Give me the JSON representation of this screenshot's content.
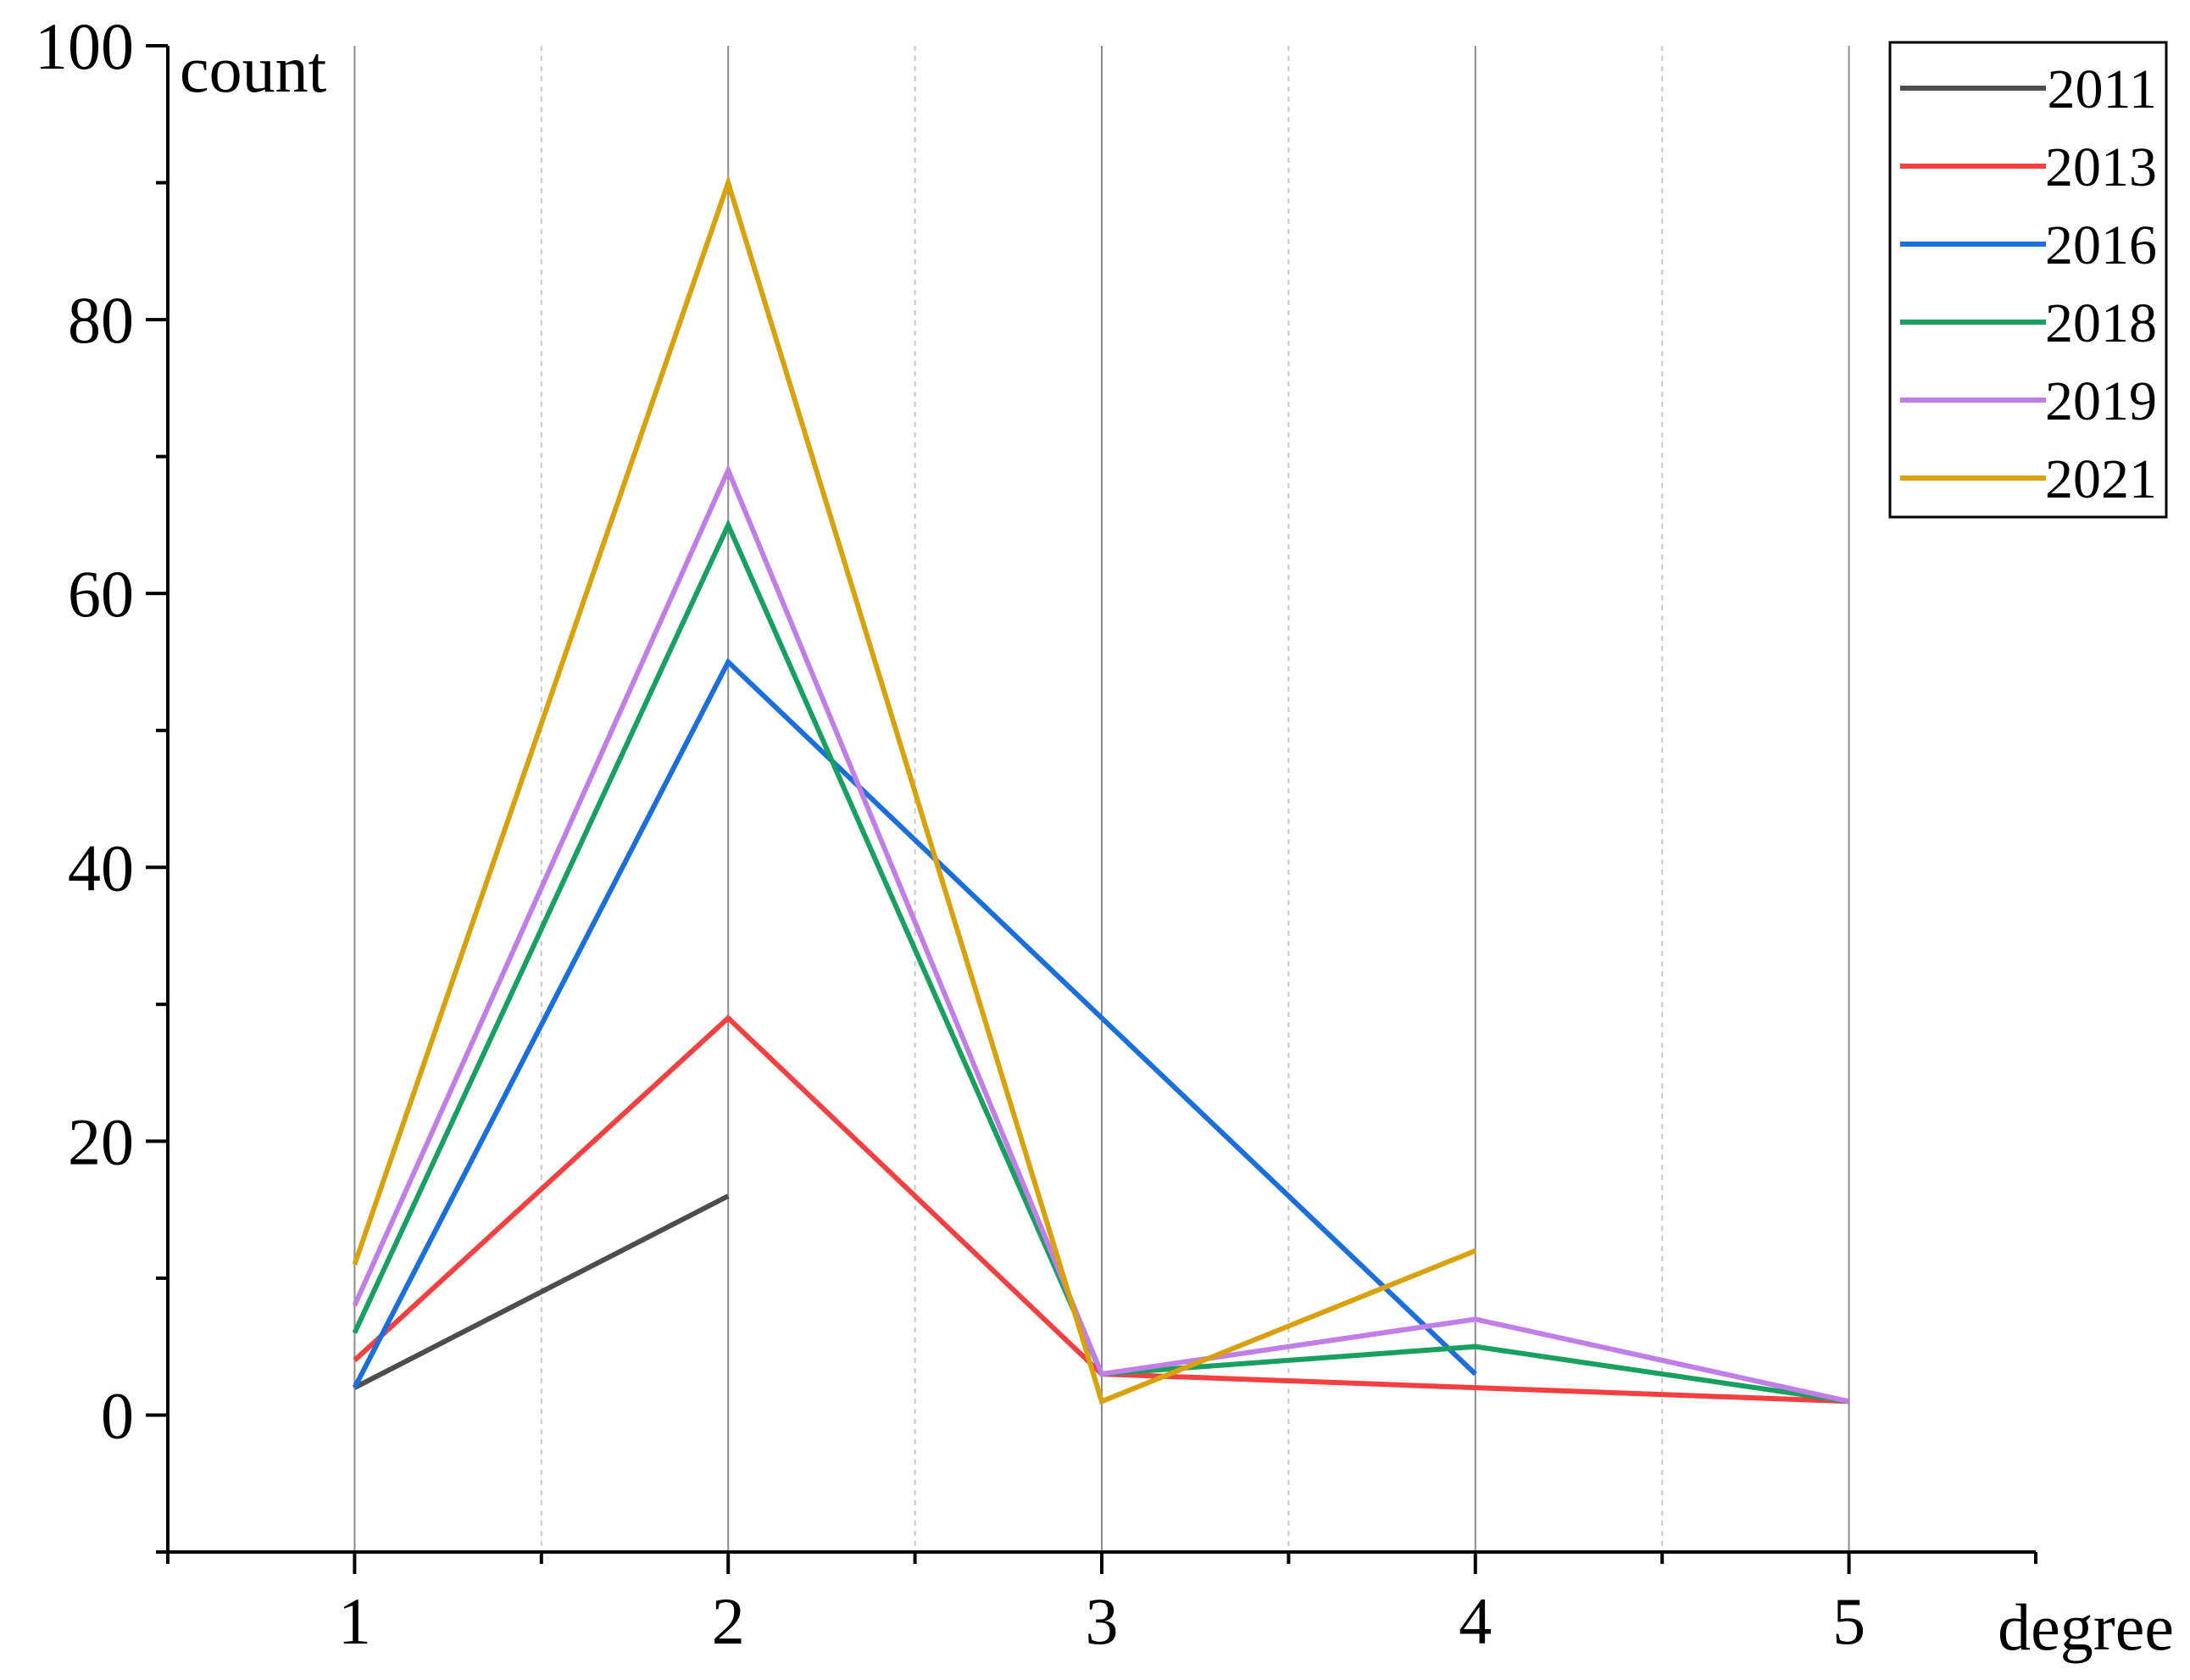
{
  "chart_data": {
    "type": "line",
    "title": "",
    "xlabel": "degree",
    "ylabel": "count",
    "x": [
      1,
      2,
      3,
      4,
      5
    ],
    "xlim": [
      0.5,
      5.5
    ],
    "ylim": [
      -10,
      100
    ],
    "x_ticks": [
      1,
      2,
      3,
      4,
      5
    ],
    "y_ticks": [
      0,
      20,
      40,
      60,
      80,
      100
    ],
    "grid": "vertical",
    "legend_position": "top-right",
    "series": [
      {
        "name": "2011",
        "color": "#4d4d4d",
        "points": [
          [
            1,
            2
          ],
          [
            2,
            16
          ]
        ]
      },
      {
        "name": "2013",
        "color": "#f44040",
        "points": [
          [
            1,
            4
          ],
          [
            2,
            29
          ],
          [
            3,
            3
          ],
          [
            4,
            2
          ],
          [
            5,
            1
          ]
        ]
      },
      {
        "name": "2016",
        "color": "#1a6fdc",
        "points": [
          [
            1,
            2
          ],
          [
            2,
            55
          ],
          [
            3,
            29
          ],
          [
            4,
            3
          ]
        ]
      },
      {
        "name": "2018",
        "color": "#18a060",
        "points": [
          [
            1,
            6
          ],
          [
            2,
            65
          ],
          [
            3,
            3
          ],
          [
            4,
            5
          ],
          [
            5,
            1
          ]
        ]
      },
      {
        "name": "2019",
        "color": "#c07ee6",
        "points": [
          [
            1,
            8
          ],
          [
            2,
            69
          ],
          [
            3,
            3
          ],
          [
            4,
            7
          ],
          [
            5,
            1
          ]
        ]
      },
      {
        "name": "2021",
        "color": "#d9a20c",
        "points": [
          [
            1,
            11
          ],
          [
            2,
            90
          ],
          [
            3,
            1
          ],
          [
            4,
            12
          ]
        ]
      }
    ]
  }
}
